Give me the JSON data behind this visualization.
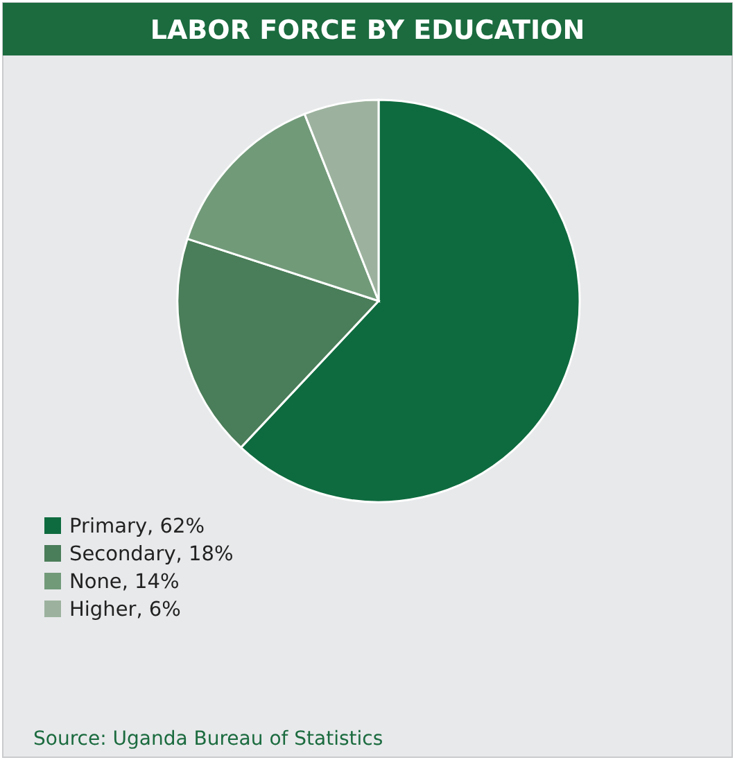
{
  "chart_data": {
    "type": "pie",
    "title": "LABOR FORCE BY EDUCATION",
    "categories": [
      "Primary",
      "Secondary",
      "None",
      "Higher"
    ],
    "values": [
      62,
      18,
      14,
      6
    ],
    "value_labels": [
      ", 62%",
      ", 18%",
      ", 14%",
      ", 6%"
    ],
    "colors": [
      "#0e6b3f",
      "#4a7d59",
      "#719a79",
      "#9cb29e"
    ],
    "legend": "bottom left",
    "annotations": [
      "Source: Uganda Bureau of Statistics"
    ]
  }
}
